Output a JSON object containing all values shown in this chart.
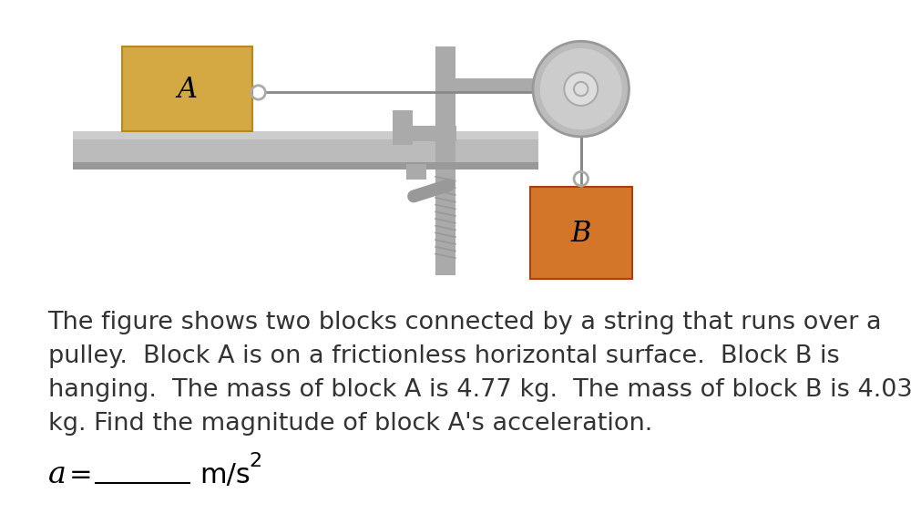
{
  "background_color": "#ffffff",
  "block_A_color": "#D4A843",
  "block_B_color": "#D4762A",
  "table_color": "#BBBBBB",
  "table_top_color": "#CCCCCC",
  "table_dark": "#999999",
  "clamp_color": "#AAAAAA",
  "clamp_dark": "#888888",
  "pulley_outer_color": "#BBBBBB",
  "pulley_mid_color": "#CCCCCC",
  "pulley_inner_color": "#DDDDDD",
  "string_color": "#888888",
  "text_color": "#333333",
  "block_A_label": "A",
  "block_B_label": "B",
  "text_line1": "The figure shows two blocks connected by a string that runs over a",
  "text_line2": "pulley.  Block A is on a frictionless horizontal surface.  Block B is",
  "text_line3": "hanging.  The mass of block A is 4.77 kg.  The mass of block B is 4.03",
  "text_line4": "kg. Find the magnitude of block A's acceleration.",
  "font_size_body": 19.5,
  "font_size_block": 22,
  "font_size_answer": 22
}
